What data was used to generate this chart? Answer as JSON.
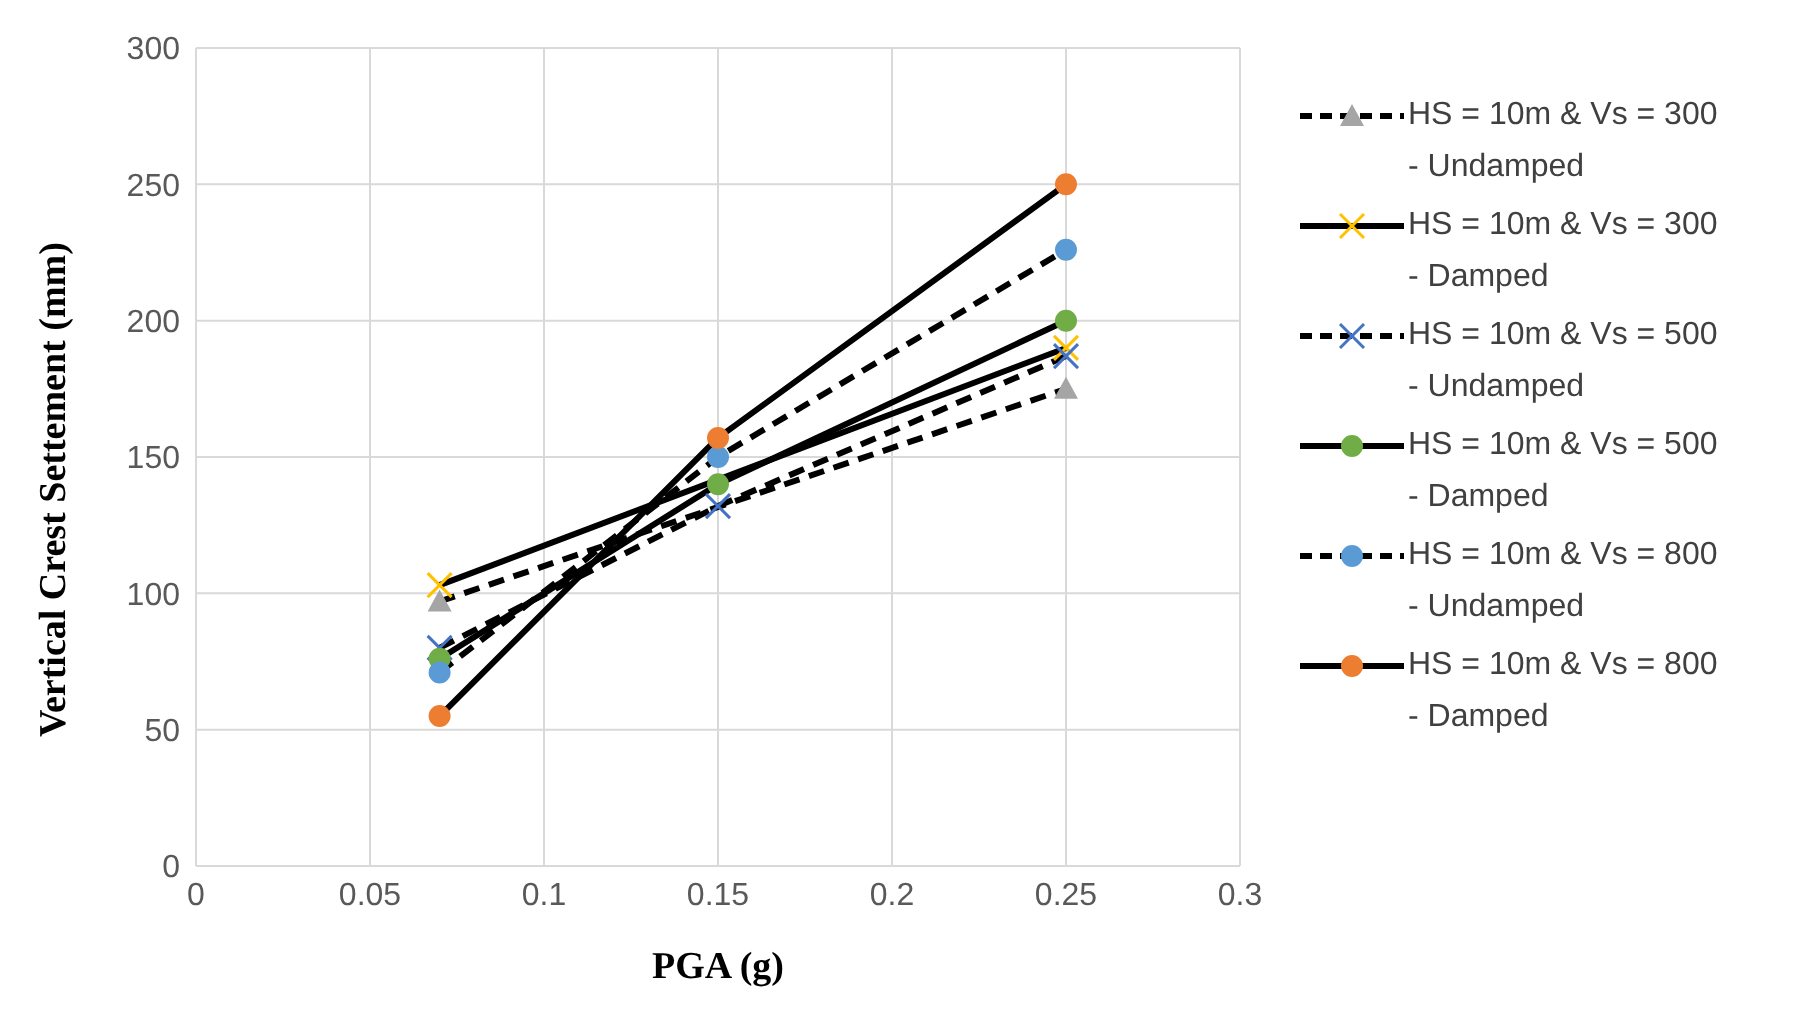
{
  "chart_data": {
    "type": "line",
    "xlabel": "PGA (g)",
    "ylabel": "Vertical Crest Settement (mm)",
    "x": [
      0.07,
      0.15,
      0.25
    ],
    "series": [
      {
        "name": "HS = 10m & Vs = 300 - Undamped",
        "color": "#a5a5a5",
        "values": [
          97,
          null,
          175
        ],
        "marker": "triangle",
        "line_style": "dashed"
      },
      {
        "name": "HS = 10m & Vs = 300 - Damped",
        "color": "#ffc000",
        "values": [
          103,
          null,
          190
        ],
        "marker": "cross",
        "line_style": "solid"
      },
      {
        "name": "HS = 10m & Vs = 500 - Undamped",
        "color": "#4472c4",
        "values": [
          80,
          132,
          187
        ],
        "marker": "cross",
        "line_style": "dashed"
      },
      {
        "name": "HS = 10m & Vs = 500 - Damped",
        "color": "#70ad47",
        "values": [
          76,
          140,
          200
        ],
        "marker": "circle",
        "line_style": "solid"
      },
      {
        "name": "HS = 10m & Vs = 800 - Undamped",
        "color": "#5b9bd5",
        "values": [
          71,
          150,
          226
        ],
        "marker": "circle",
        "line_style": "dashed"
      },
      {
        "name": "HS = 10m & Vs = 800 - Damped",
        "color": "#ed7d31",
        "values": [
          55,
          157,
          250
        ],
        "marker": "circle",
        "line_style": "solid"
      }
    ],
    "xlim": [
      0,
      0.3
    ],
    "xticks": [
      0,
      0.05,
      0.1,
      0.15,
      0.2,
      0.25,
      0.3
    ],
    "ylim": [
      0,
      300
    ],
    "yticks": [
      0,
      50,
      100,
      150,
      200,
      250,
      300
    ],
    "grid": true,
    "legend": "right"
  }
}
